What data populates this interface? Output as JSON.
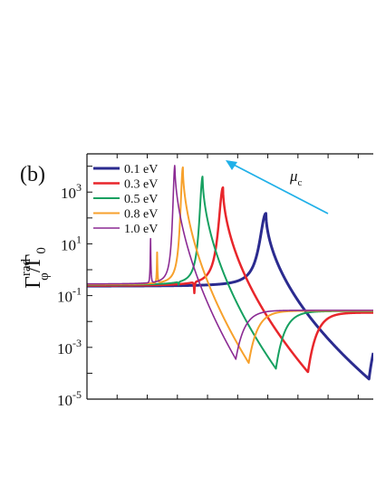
{
  "chart_data": {
    "type": "line",
    "panel_label": "(b)",
    "ylabel": {
      "main": "Γ",
      "sup": "rad",
      "sub": "φ",
      "tail": "/Γ",
      "tail_sub": "0"
    },
    "yscale": "log",
    "ylim": [
      1e-05,
      30000.0
    ],
    "xlim": [
      0,
      1
    ],
    "yticks": [
      {
        "value": 1000.0,
        "base": "10",
        "exp": "3"
      },
      {
        "value": 10,
        "base": "10",
        "exp": "1"
      },
      {
        "value": 0.1,
        "base": "10",
        "exp": "-1"
      },
      {
        "value": 0.001,
        "base": "10",
        "exp": "-3"
      },
      {
        "value": 1e-05,
        "base": "10",
        "exp": "-5"
      }
    ],
    "legend_position": "top-left",
    "annotation": {
      "text": "μ",
      "sub": "c"
    },
    "grid": false,
    "series": [
      {
        "name": "0.1 eV",
        "color": "#2b2b8f",
        "width": 3.0,
        "baseline": 0.23,
        "peak_x": 0.625,
        "peak_y": 150,
        "width_param": 0.035,
        "dip_x": 0.985,
        "dip_y": 6e-05,
        "tail_y": 0.022,
        "spike_x": null
      },
      {
        "name": "0.3 eV",
        "color": "#e8262b",
        "width": 2.5,
        "baseline": 0.24,
        "peak_x": 0.475,
        "peak_y": 1500,
        "width_param": 0.025,
        "dip_x": 0.772,
        "dip_y": 0.00011,
        "tail_y": 0.022,
        "spike_x": 0.375,
        "spike_y": 0.09
      },
      {
        "name": "0.5 eV",
        "color": "#16a060",
        "width": 2.0,
        "baseline": 0.26,
        "peak_x": 0.404,
        "peak_y": 4000,
        "width_param": 0.018,
        "dip_x": 0.66,
        "dip_y": 0.00015,
        "tail_y": 0.025,
        "spike_x": 0.32,
        "spike_y": 0.2
      },
      {
        "name": "0.8 eV",
        "color": "#f7a12c",
        "width": 2.0,
        "baseline": 0.27,
        "peak_x": 0.335,
        "peak_y": 9000,
        "width_param": 0.014,
        "dip_x": 0.565,
        "dip_y": 0.00025,
        "tail_y": 0.026,
        "spike_x": 0.245,
        "spike_y": 4.0
      },
      {
        "name": "1.0 eV",
        "color": "#8b2a93",
        "width": 1.6,
        "baseline": 0.28,
        "peak_x": 0.307,
        "peak_y": 11000,
        "width_param": 0.012,
        "dip_x": 0.52,
        "dip_y": 0.00035,
        "tail_y": 0.027,
        "spike_x": 0.222,
        "spike_y": 20
      }
    ]
  }
}
